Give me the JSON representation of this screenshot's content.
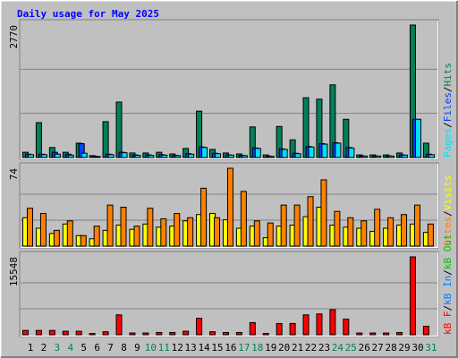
{
  "chart_data": [
    {
      "type": "bar",
      "title": "Daily usage for May 2025",
      "ylim": [
        0,
        2770
      ],
      "yticks": [
        2770
      ],
      "grid_divisions": 3,
      "legend_separator": "/",
      "series": [
        {
          "name": "Hits",
          "color": "#00805c",
          "values": [
            110,
            730,
            210,
            110,
            300,
            40,
            750,
            1160,
            95,
            95,
            110,
            75,
            190,
            970,
            170,
            95,
            75,
            640,
            55,
            650,
            370,
            1250,
            1220,
            1520,
            800,
            55,
            55,
            55,
            95,
            2770,
            300
          ]
        },
        {
          "name": "Files",
          "color": "#0040ff",
          "values": [
            70,
            70,
            110,
            70,
            290,
            25,
            70,
            110,
            55,
            55,
            60,
            45,
            80,
            220,
            90,
            55,
            45,
            200,
            30,
            180,
            90,
            230,
            290,
            310,
            210,
            35,
            35,
            35,
            55,
            800,
            70
          ]
        },
        {
          "name": "Pages",
          "color": "#00e0ff",
          "values": [
            60,
            60,
            70,
            50,
            90,
            20,
            60,
            100,
            45,
            45,
            50,
            40,
            70,
            210,
            80,
            50,
            40,
            190,
            25,
            170,
            80,
            220,
            280,
            300,
            200,
            30,
            30,
            30,
            50,
            800,
            60
          ]
        }
      ]
    },
    {
      "type": "bar",
      "ylim": [
        0,
        74
      ],
      "yticks": [
        74
      ],
      "grid_divisions": 3,
      "legend_separator": "/",
      "series": [
        {
          "name": "Visits",
          "color": "#ffff00",
          "values": [
            27,
            17,
            12,
            21,
            10,
            7,
            15,
            20,
            16,
            21,
            18,
            19,
            24,
            30,
            31,
            25,
            17,
            19,
            8,
            19,
            20,
            28,
            37,
            20,
            18,
            17,
            14,
            17,
            20,
            21,
            13
          ]
        },
        {
          "name": "Sites",
          "color": "#ff8000",
          "values": [
            36,
            31,
            15,
            24,
            10,
            19,
            39,
            37,
            19,
            36,
            26,
            31,
            27,
            55,
            27,
            74,
            52,
            24,
            22,
            39,
            39,
            47,
            63,
            33,
            27,
            24,
            35,
            27,
            30,
            39,
            21
          ]
        }
      ]
    },
    {
      "type": "bar",
      "ylim": [
        0,
        15548
      ],
      "yticks": [
        15548
      ],
      "grid_divisions": 3,
      "legend_separator": "/",
      "categories": [
        "1",
        "2",
        "3",
        "4",
        "5",
        "6",
        "7",
        "8",
        "9",
        "10",
        "11",
        "12",
        "13",
        "14",
        "15",
        "16",
        "17",
        "18",
        "19",
        "20",
        "21",
        "22",
        "23",
        "24",
        "25",
        "26",
        "27",
        "28",
        "29",
        "30",
        "31"
      ],
      "category_colors": [
        "#000000",
        "#000000",
        "#00805c",
        "#00805c",
        "#000000",
        "#000000",
        "#000000",
        "#000000",
        "#000000",
        "#00805c",
        "#00805c",
        "#000000",
        "#000000",
        "#000000",
        "#000000",
        "#000000",
        "#00805c",
        "#00805c",
        "#000000",
        "#000000",
        "#000000",
        "#000000",
        "#000000",
        "#00805c",
        "#00805c",
        "#000000",
        "#000000",
        "#000000",
        "#000000",
        "#000000",
        "#00805c"
      ],
      "series": [
        {
          "name": "kB F",
          "color": "#ff0000",
          "values": [
            860,
            860,
            860,
            700,
            700,
            250,
            600,
            3970,
            350,
            350,
            450,
            450,
            700,
            3280,
            600,
            450,
            450,
            2420,
            250,
            2250,
            2250,
            3970,
            4150,
            5000,
            3100,
            350,
            350,
            350,
            450,
            15548,
            1700
          ]
        }
      ],
      "legend": [
        {
          "name": "kB F",
          "color": "#ff0000"
        },
        {
          "name": "kB In",
          "color": "#0080ff"
        },
        {
          "name": "kB Out",
          "color": "#00c000"
        }
      ]
    }
  ]
}
